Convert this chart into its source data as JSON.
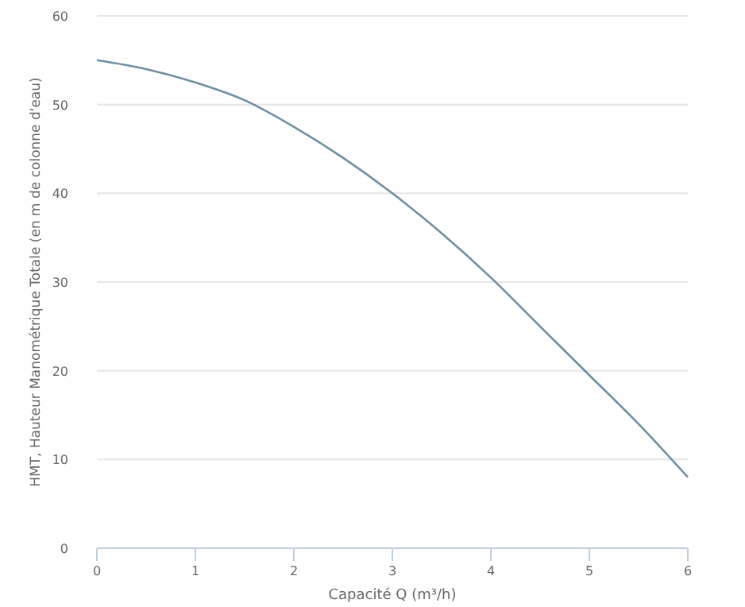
{
  "chart_data": {
    "type": "line",
    "xlabel": "Capacité Q (m³/h)",
    "ylabel": "HMT, Hauteur Manométrique Totale (en m de colonne d'eau)",
    "x": [
      0,
      0.5,
      1,
      1.5,
      2,
      2.5,
      3,
      3.5,
      4,
      4.5,
      5,
      5.5,
      6
    ],
    "series": [
      {
        "color": "#6f8fa0",
        "values": [
          55,
          54,
          52.5,
          50.5,
          47.5,
          44,
          40,
          35.5,
          30.5,
          25,
          19.5,
          14,
          8
        ]
      }
    ],
    "xlim": [
      0,
      6
    ],
    "xticks": [
      0,
      1,
      2,
      3,
      4,
      5,
      6
    ],
    "ylim": [
      0,
      60
    ],
    "yticks": [
      0,
      10,
      20,
      30,
      40,
      50,
      60
    ],
    "grid": "y",
    "marker": "none",
    "line_style": "solid"
  }
}
